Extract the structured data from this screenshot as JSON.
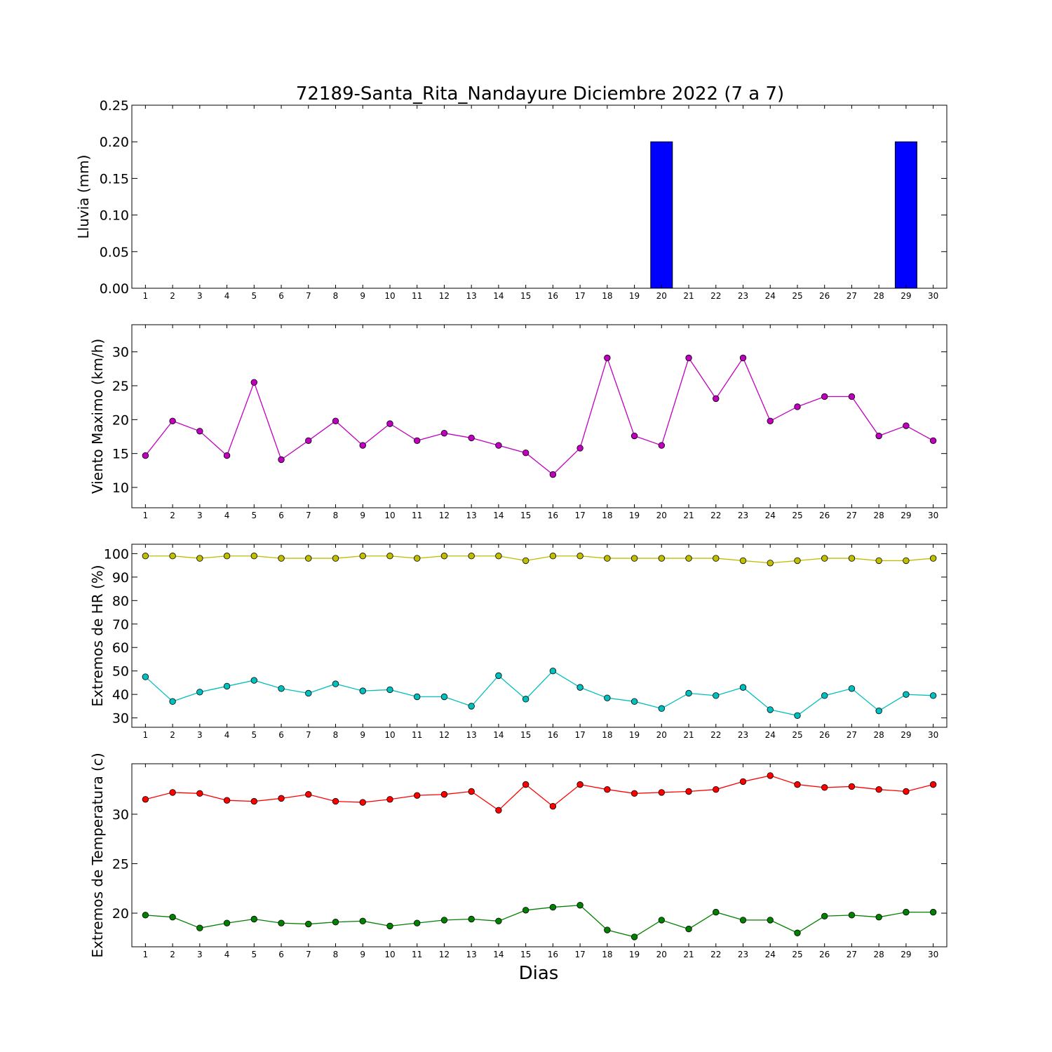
{
  "figure": {
    "title": "72189-Santa_Rita_Nandayure Diciembre 2022  (7 a 7)",
    "xlabel": "Dias"
  },
  "chart_data": [
    {
      "type": "bar",
      "ylabel": "Lluvia (mm)",
      "x": [
        1,
        2,
        3,
        4,
        5,
        6,
        7,
        8,
        9,
        10,
        11,
        12,
        13,
        14,
        15,
        16,
        17,
        18,
        19,
        20,
        21,
        22,
        23,
        24,
        25,
        26,
        27,
        28,
        29,
        30
      ],
      "xlim": [
        0.5,
        30.5
      ],
      "ylim": [
        0,
        0.25
      ],
      "yticks": [
        0.0,
        0.05,
        0.1,
        0.15,
        0.2,
        0.25
      ],
      "ytick_labels": [
        "0.00",
        "0.05",
        "0.10",
        "0.15",
        "0.20",
        "0.25"
      ],
      "series": [
        {
          "color": "#0000ff",
          "values": [
            0,
            0,
            0,
            0,
            0,
            0,
            0,
            0,
            0,
            0,
            0,
            0,
            0,
            0,
            0,
            0,
            0,
            0,
            0,
            0.2,
            0,
            0,
            0,
            0,
            0,
            0,
            0,
            0,
            0.2,
            0
          ]
        }
      ]
    },
    {
      "type": "line",
      "ylabel": "Viento Maximo (km/h)",
      "x": [
        1,
        2,
        3,
        4,
        5,
        6,
        7,
        8,
        9,
        10,
        11,
        12,
        13,
        14,
        15,
        16,
        17,
        18,
        19,
        20,
        21,
        22,
        23,
        24,
        25,
        26,
        27,
        28,
        29,
        30
      ],
      "xlim": [
        0.5,
        30.5
      ],
      "ylim": [
        7,
        34
      ],
      "yticks": [
        10,
        15,
        20,
        25,
        30
      ],
      "ytick_labels": [
        "10",
        "15",
        "20",
        "25",
        "30"
      ],
      "series": [
        {
          "color": "#bf00bf",
          "values": [
            14.7,
            19.8,
            18.3,
            14.7,
            25.5,
            14.1,
            16.9,
            19.8,
            16.2,
            19.4,
            16.9,
            18.0,
            17.3,
            16.2,
            15.1,
            11.9,
            15.8,
            29.1,
            17.6,
            16.2,
            29.1,
            23.1,
            29.1,
            19.8,
            21.9,
            23.4,
            23.4,
            17.6,
            19.1,
            16.9
          ]
        }
      ]
    },
    {
      "type": "line",
      "ylabel": "Extremos de HR (%)",
      "x": [
        1,
        2,
        3,
        4,
        5,
        6,
        7,
        8,
        9,
        10,
        11,
        12,
        13,
        14,
        15,
        16,
        17,
        18,
        19,
        20,
        21,
        22,
        23,
        24,
        25,
        26,
        27,
        28,
        29,
        30
      ],
      "xlim": [
        0.5,
        30.5
      ],
      "ylim": [
        26,
        104
      ],
      "yticks": [
        30,
        40,
        50,
        60,
        70,
        80,
        90,
        100
      ],
      "ytick_labels": [
        "30",
        "40",
        "50",
        "60",
        "70",
        "80",
        "90",
        "100"
      ],
      "series": [
        {
          "color": "#bfbf00",
          "values": [
            99,
            99,
            98,
            99,
            99,
            98,
            98,
            98,
            99,
            99,
            98,
            99,
            99,
            99,
            97,
            99,
            99,
            98,
            98,
            98,
            98,
            98,
            97,
            96,
            97,
            98,
            98,
            97,
            97,
            98
          ]
        },
        {
          "color": "#00bfbf",
          "values": [
            47.5,
            37,
            41,
            43.5,
            46,
            42.5,
            40.5,
            44.5,
            41.5,
            42,
            39,
            39,
            35,
            48,
            38,
            50,
            43,
            38.5,
            37,
            34,
            40.5,
            39.5,
            43,
            33.5,
            31,
            39.5,
            42.5,
            33,
            40,
            39.5
          ]
        }
      ]
    },
    {
      "type": "line",
      "ylabel": "Extremos de Temperatura (c)",
      "x": [
        1,
        2,
        3,
        4,
        5,
        6,
        7,
        8,
        9,
        10,
        11,
        12,
        13,
        14,
        15,
        16,
        17,
        18,
        19,
        20,
        21,
        22,
        23,
        24,
        25,
        26,
        27,
        28,
        29,
        30
      ],
      "xlim": [
        0.5,
        30.5
      ],
      "ylim": [
        16.6,
        35.1
      ],
      "yticks": [
        20,
        25,
        30
      ],
      "ytick_labels": [
        "20",
        "25",
        "30"
      ],
      "series": [
        {
          "color": "#ff0000",
          "values": [
            31.5,
            32.2,
            32.1,
            31.4,
            31.3,
            31.6,
            32.0,
            31.3,
            31.2,
            31.5,
            31.9,
            32.0,
            32.3,
            30.4,
            33.0,
            30.8,
            33.0,
            32.5,
            32.1,
            32.2,
            32.3,
            32.5,
            33.3,
            33.9,
            33.0,
            32.7,
            32.8,
            32.5,
            32.3,
            33.0
          ]
        },
        {
          "color": "#007f00",
          "values": [
            19.8,
            19.6,
            18.5,
            19.0,
            19.4,
            19.0,
            18.9,
            19.1,
            19.2,
            18.7,
            19.0,
            19.3,
            19.4,
            19.2,
            20.3,
            20.6,
            20.8,
            18.3,
            17.6,
            19.3,
            18.4,
            20.1,
            19.3,
            19.3,
            18.0,
            19.7,
            19.8,
            19.6,
            20.1,
            20.1
          ]
        }
      ]
    }
  ]
}
